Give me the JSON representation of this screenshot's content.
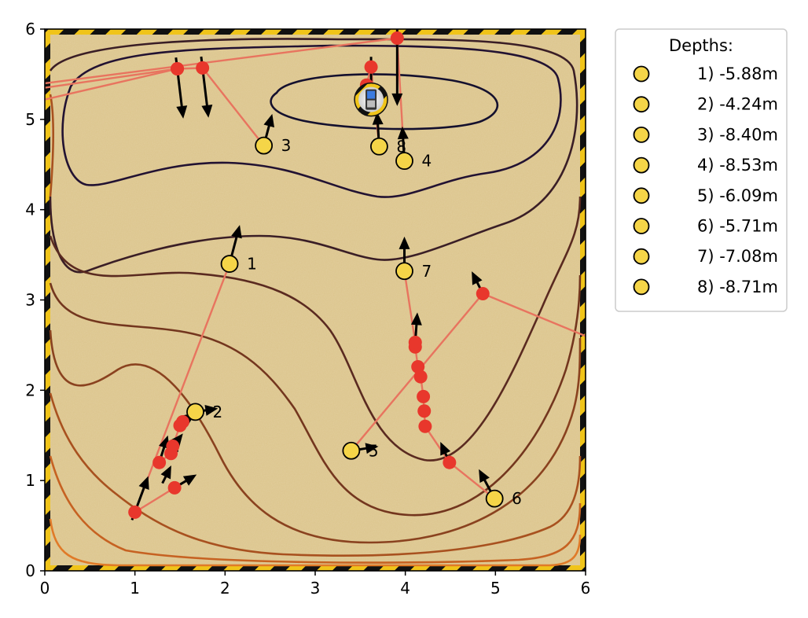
{
  "chart_data": {
    "type": "scatter",
    "xlim": [
      0,
      6
    ],
    "ylim": [
      0,
      6
    ],
    "x_ticks": [
      "0",
      "1",
      "2",
      "3",
      "4",
      "5",
      "6"
    ],
    "y_ticks": [
      "0",
      "1",
      "2",
      "3",
      "4",
      "5",
      "6"
    ],
    "grid": false,
    "legend_title": "Depths:",
    "legend_position": "outside-right-top",
    "colors": {
      "seafloor": "#dcc48a",
      "hazard_border_yellow": "#f0c419",
      "hazard_border_black": "#111111",
      "trajectory_line": "#e8745f",
      "waypoint": "#e8372c",
      "marker_fill": "#f5d548",
      "contour_deep": "#14102e",
      "contour_shallow": "#e07a28"
    },
    "markers": [
      {
        "label": "1",
        "x": 2.05,
        "y": 3.4,
        "depth": "1) -5.88m"
      },
      {
        "label": "2",
        "x": 1.67,
        "y": 1.76,
        "depth": "2) -4.24m"
      },
      {
        "label": "3",
        "x": 2.43,
        "y": 4.71,
        "depth": "3) -8.40m"
      },
      {
        "label": "4",
        "x": 3.99,
        "y": 4.54,
        "depth": "4) -8.53m"
      },
      {
        "label": "5",
        "x": 3.4,
        "y": 1.33,
        "depth": "5) -6.09m"
      },
      {
        "label": "6",
        "x": 4.99,
        "y": 0.8,
        "depth": "6) -5.71m"
      },
      {
        "label": "7",
        "x": 3.99,
        "y": 3.32,
        "depth": "7) -7.08m"
      },
      {
        "label": "8",
        "x": 3.71,
        "y": 4.7,
        "depth": "8) -8.71m"
      }
    ],
    "trajectories": [
      {
        "points": [
          [
            2.05,
            3.4
          ],
          [
            1.0,
            0.65
          ],
          [
            1.44,
            0.92
          ]
        ]
      },
      {
        "points": [
          [
            1.67,
            1.76
          ],
          [
            1.53,
            1.65
          ],
          [
            1.5,
            1.61
          ],
          [
            1.42,
            1.38
          ],
          [
            1.4,
            1.3
          ],
          [
            1.27,
            1.2
          ]
        ]
      },
      {
        "points": [
          [
            2.43,
            4.71
          ],
          [
            1.75,
            5.57
          ],
          [
            1.47,
            5.56
          ],
          [
            0.0,
            5.22
          ]
        ]
      },
      {
        "points": [
          [
            1.47,
            5.56
          ],
          [
            0.0,
            5.35
          ]
        ]
      },
      {
        "points": [
          [
            3.99,
            4.54
          ],
          [
            3.91,
            5.9
          ],
          [
            0.0,
            5.4
          ]
        ]
      },
      {
        "points": [
          [
            3.71,
            4.7
          ],
          [
            3.62,
            5.58
          ],
          [
            3.57,
            5.38
          ]
        ]
      },
      {
        "points": [
          [
            3.4,
            1.33
          ],
          [
            4.86,
            3.07
          ],
          [
            6.0,
            2.6
          ]
        ]
      },
      {
        "points": [
          [
            4.99,
            0.8
          ],
          [
            4.49,
            1.2
          ],
          [
            4.22,
            1.6
          ],
          [
            4.21,
            1.77
          ],
          [
            4.2,
            1.93
          ],
          [
            4.17,
            2.15
          ],
          [
            4.14,
            2.26
          ],
          [
            4.11,
            2.48
          ],
          [
            4.11,
            2.53
          ],
          [
            3.99,
            3.32
          ]
        ]
      }
    ],
    "arrows": [
      {
        "x": 2.05,
        "y": 3.4,
        "dx": 0.1,
        "dy": 0.38
      },
      {
        "x": 1.67,
        "y": 1.76,
        "dx": 0.2,
        "dy": 0.03
      },
      {
        "x": 2.43,
        "y": 4.71,
        "dx": 0.08,
        "dy": 0.3
      },
      {
        "x": 3.99,
        "y": 4.54,
        "dx": -0.02,
        "dy": 0.33
      },
      {
        "x": 3.4,
        "y": 1.33,
        "dx": 0.25,
        "dy": 0.04
      },
      {
        "x": 4.99,
        "y": 0.8,
        "dx": -0.15,
        "dy": 0.28
      },
      {
        "x": 3.99,
        "y": 3.32,
        "dx": 0.0,
        "dy": 0.33
      },
      {
        "x": 3.71,
        "y": 4.7,
        "dx": -0.02,
        "dy": 0.33
      },
      {
        "x": 1.0,
        "y": 0.65,
        "dx": 0.13,
        "dy": 0.35
      },
      {
        "x": 1.44,
        "y": 0.92,
        "dx": 0.2,
        "dy": 0.12
      },
      {
        "x": 1.27,
        "y": 1.2,
        "dx": 0.08,
        "dy": 0.25
      },
      {
        "x": 1.4,
        "y": 1.3,
        "dx": 0.07,
        "dy": 0.12
      },
      {
        "x": 1.42,
        "y": 1.38,
        "dx": 0.08,
        "dy": 0.1
      },
      {
        "x": 1.5,
        "y": 1.61,
        "dx": 0.08,
        "dy": 0.05
      },
      {
        "x": 1.53,
        "y": 1.65,
        "dx": 0.1,
        "dy": 0.07
      },
      {
        "x": 1.47,
        "y": 5.56,
        "dx": 0.06,
        "dy": -0.5
      },
      {
        "x": 1.75,
        "y": 5.57,
        "dx": 0.06,
        "dy": -0.5
      },
      {
        "x": 3.91,
        "y": 5.9,
        "dx": 0.0,
        "dy": -0.7
      },
      {
        "x": 3.62,
        "y": 5.58,
        "dx": 0.0,
        "dy": -0.45
      },
      {
        "x": 4.49,
        "y": 1.2,
        "dx": -0.08,
        "dy": 0.18
      },
      {
        "x": 4.86,
        "y": 3.07,
        "dx": -0.1,
        "dy": 0.2
      },
      {
        "x": 4.11,
        "y": 2.53,
        "dx": 0.02,
        "dy": 0.28
      },
      {
        "x": 1.32,
        "y": 1.0,
        "dx": 0.06,
        "dy": 0.12
      }
    ],
    "robot": {
      "x": 3.62,
      "y": 5.22
    }
  }
}
